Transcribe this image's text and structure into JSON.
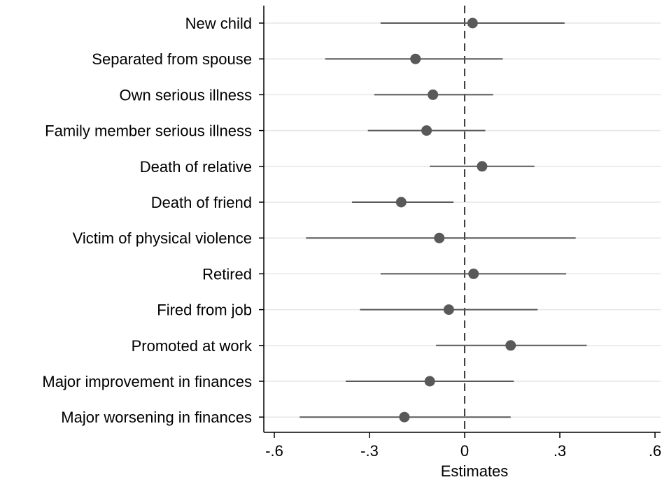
{
  "chart_data": {
    "type": "scatter",
    "subtype": "coefficient-plot",
    "xlabel": "Estimates",
    "xlim": [
      -0.6,
      0.6
    ],
    "x_ticks": [
      -0.6,
      -0.3,
      0,
      0.3,
      0.6
    ],
    "x_tick_labels": [
      "-.6",
      "-.3",
      "0",
      ".3",
      ".6"
    ],
    "reference_line": {
      "x": 0,
      "style": "dashed"
    },
    "grid": "horizontal",
    "colors": {
      "marker": "#595959",
      "ci_line": "#595959",
      "grid": "#e6e6e6",
      "axis": "#000000"
    },
    "categories": [
      "New child",
      "Separated from spouse",
      "Own serious illness",
      "Family member serious illness",
      "Death of relative",
      "Death of friend",
      "Victim of physical violence",
      "Retired",
      "Fired from job",
      "Promoted at work",
      "Major improvement in finances",
      "Major worsening in finances"
    ],
    "estimates": [
      0.025,
      -0.155,
      -0.1,
      -0.12,
      0.055,
      -0.2,
      -0.08,
      0.028,
      -0.05,
      0.145,
      -0.11,
      -0.19
    ],
    "ci_lower": [
      -0.265,
      -0.44,
      -0.285,
      -0.305,
      -0.11,
      -0.355,
      -0.5,
      -0.265,
      -0.33,
      -0.09,
      -0.375,
      -0.52
    ],
    "ci_upper": [
      0.315,
      0.12,
      0.09,
      0.065,
      0.22,
      -0.035,
      0.35,
      0.32,
      0.23,
      0.385,
      0.155,
      0.145
    ]
  }
}
